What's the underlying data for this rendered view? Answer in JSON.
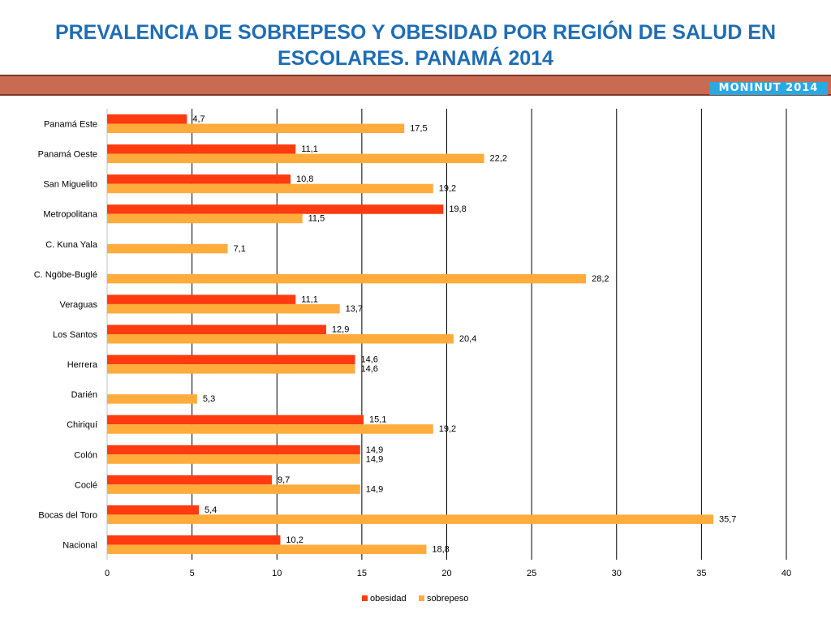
{
  "header": {
    "title_line1": "PREVALENCIA DE SOBREPESO Y OBESIDAD POR REGIÓN DE SALUD EN",
    "title_line2": "ESCOLARES. PANAMÁ 2014",
    "badge": "MONINUT 2014",
    "banner_color": "#c96a52",
    "title_color": "#1f6db3",
    "badge_color": "#29a9e1"
  },
  "chart_data": {
    "type": "bar",
    "orientation": "horizontal",
    "categories": [
      "Panamá Este",
      "Panamá Oeste",
      "San Miguelito",
      "Metropolitana",
      "C. Kuna Yala",
      "C. Ngöbe-Buglé",
      "Veraguas",
      "Los Santos",
      "Herrera",
      "Darién",
      "Chiriquí",
      "Colón",
      "Coclé",
      "Bocas del Toro",
      "Nacional"
    ],
    "series": [
      {
        "name": "obesidad",
        "color": "#ff3b0f",
        "values": [
          4.7,
          11.1,
          10.8,
          19.8,
          null,
          null,
          11.1,
          12.9,
          14.6,
          null,
          15.1,
          14.9,
          9.7,
          5.4,
          10.2
        ],
        "labels": [
          "4,7",
          "11,1",
          "10,8",
          "19,8",
          "",
          "",
          "11,1",
          "12,9",
          "14,6",
          "",
          "15,1",
          "14,9",
          "9,7",
          "5,4",
          "10,2"
        ]
      },
      {
        "name": "sobrepeso",
        "color": "#ffac3c",
        "values": [
          17.5,
          22.2,
          19.2,
          11.5,
          7.1,
          28.2,
          13.7,
          20.4,
          14.6,
          5.3,
          19.2,
          14.9,
          14.9,
          35.7,
          18.8
        ],
        "labels": [
          "17,5",
          "22,2",
          "19,2",
          "11,5",
          "7,1",
          "28,2",
          "13,7",
          "20,4",
          "14,6",
          "5,3",
          "19,2",
          "14,9",
          "14,9",
          "35,7",
          "18,8"
        ]
      }
    ],
    "xlim": [
      0,
      40
    ],
    "xticks": [
      0,
      5,
      10,
      15,
      20,
      25,
      30,
      35,
      40
    ],
    "xtick_labels": [
      "0",
      "5",
      "10",
      "15",
      "20",
      "25",
      "30",
      "35",
      "40"
    ],
    "grid": "vertical",
    "legend_position": "bottom"
  }
}
